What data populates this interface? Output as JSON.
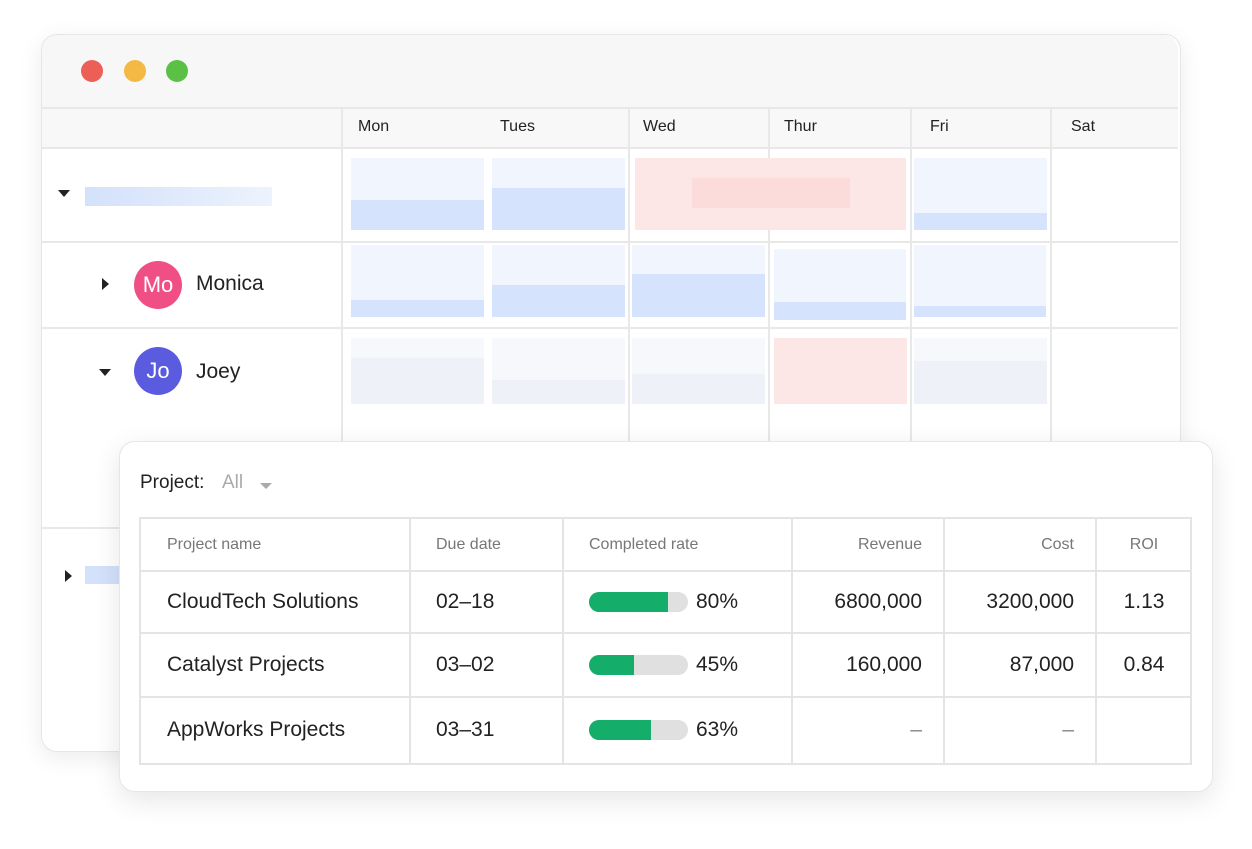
{
  "window": {
    "days": [
      "Mon",
      "Tues",
      "Wed",
      "Thur",
      "Fri",
      "Sat"
    ],
    "people": [
      {
        "initials": "Mo",
        "name": "Monica"
      },
      {
        "initials": "Jo",
        "name": "Joey"
      }
    ]
  },
  "filter": {
    "label": "Project:",
    "value": "All"
  },
  "table": {
    "columns": [
      "Project name",
      "Due date",
      "Completed rate",
      "Revenue",
      "Cost",
      "ROI"
    ],
    "rows": [
      {
        "name": "CloudTech Solutions",
        "due": "02–18",
        "rate": {
          "value": 80,
          "label": "80%"
        },
        "revenue": "6800,000",
        "cost": "3200,000",
        "roi": "1.13"
      },
      {
        "name": "Catalyst Projects",
        "due": "03–02",
        "rate": {
          "value": 45,
          "label": "45%"
        },
        "revenue": "160,000",
        "cost": "87,000",
        "roi": "0.84"
      },
      {
        "name": "AppWorks Projects",
        "due": "03–31",
        "rate": {
          "value": 63,
          "label": "63%"
        },
        "revenue": "–",
        "cost": "–",
        "roi": null
      }
    ]
  }
}
